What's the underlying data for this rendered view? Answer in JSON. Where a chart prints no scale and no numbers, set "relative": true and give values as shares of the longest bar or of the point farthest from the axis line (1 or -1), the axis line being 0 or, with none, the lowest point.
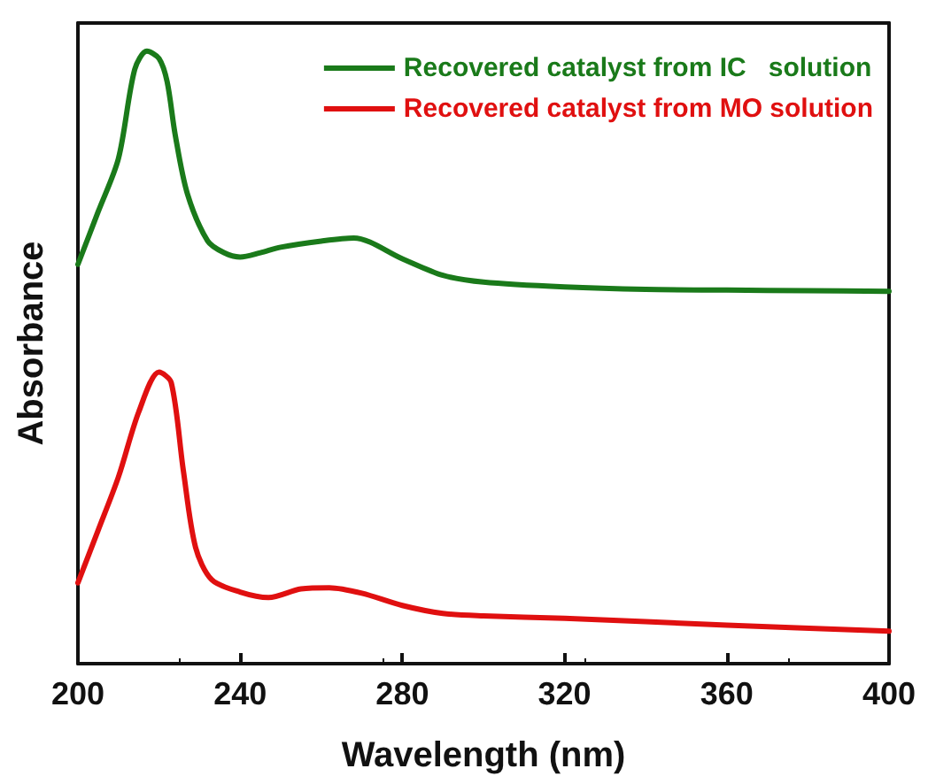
{
  "chart_data": {
    "type": "line",
    "xlabel": "Wavelength (nm)",
    "ylabel": "Absorbance",
    "relative": true,
    "xlim": [
      200,
      400
    ],
    "xticks": [
      200,
      240,
      280,
      320,
      360,
      400
    ],
    "tick_labels": "x",
    "legend": "top right",
    "marker": "none",
    "line_style": "solid",
    "grid": false,
    "series": [
      {
        "name": "Recovered catalyst from IC   solution",
        "color": "#1a7a1a",
        "x": [
          200,
          205,
          210,
          214,
          217,
          220,
          222,
          224,
          227,
          232,
          236,
          240,
          245,
          250,
          260,
          268,
          280,
          290,
          300,
          320,
          340,
          360,
          380,
          400
        ],
        "values": [
          0.652,
          0.738,
          0.825,
          0.97,
          1.0,
          0.988,
          0.95,
          0.863,
          0.767,
          0.69,
          0.671,
          0.664,
          0.671,
          0.68,
          0.69,
          0.695,
          0.661,
          0.634,
          0.623,
          0.615,
          0.611,
          0.61,
          0.609,
          0.608
        ]
      },
      {
        "name": "Recovered catalyst from MO solution",
        "color": "#e01010",
        "x": [
          200,
          205,
          210,
          215,
          220,
          223,
          226,
          229,
          233,
          240,
          247,
          255,
          262,
          270,
          280,
          290,
          300,
          320,
          360,
          400
        ],
        "values": [
          0.132,
          0.218,
          0.305,
          0.411,
          0.476,
          0.459,
          0.315,
          0.19,
          0.137,
          0.117,
          0.108,
          0.122,
          0.124,
          0.115,
          0.095,
          0.082,
          0.078,
          0.074,
          0.063,
          0.053
        ]
      }
    ]
  }
}
